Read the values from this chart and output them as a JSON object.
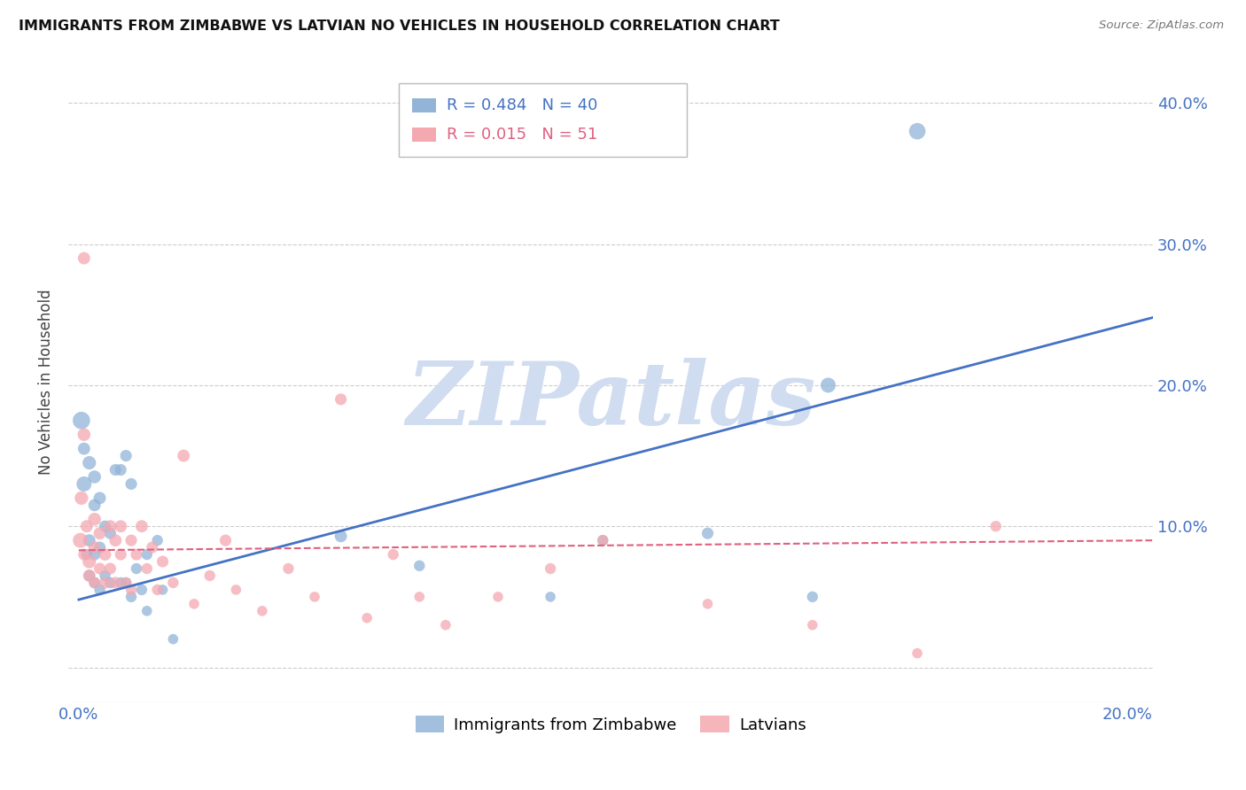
{
  "title": "IMMIGRANTS FROM ZIMBABWE VS LATVIAN NO VEHICLES IN HOUSEHOLD CORRELATION CHART",
  "source": "Source: ZipAtlas.com",
  "ylabel": "No Vehicles in Household",
  "y_ticks": [
    0.0,
    0.1,
    0.2,
    0.3,
    0.4
  ],
  "y_tick_labels": [
    "",
    "10.0%",
    "20.0%",
    "30.0%",
    "40.0%"
  ],
  "x_lim": [
    -0.002,
    0.205
  ],
  "y_lim": [
    -0.025,
    0.43
  ],
  "legend": {
    "blue_R": "0.484",
    "blue_N": "40",
    "pink_R": "0.015",
    "pink_N": "51"
  },
  "blue_color": "#92B4D7",
  "pink_color": "#F4A8B0",
  "blue_line_color": "#4472C4",
  "pink_line_color": "#E06080",
  "watermark_text": "ZIPatlas",
  "watermark_color": "#D0DCF0",
  "blue_scatter": {
    "x": [
      0.0005,
      0.001,
      0.001,
      0.0015,
      0.002,
      0.002,
      0.002,
      0.003,
      0.003,
      0.003,
      0.003,
      0.004,
      0.004,
      0.004,
      0.005,
      0.005,
      0.006,
      0.006,
      0.007,
      0.008,
      0.008,
      0.009,
      0.009,
      0.01,
      0.01,
      0.011,
      0.012,
      0.013,
      0.013,
      0.015,
      0.016,
      0.018,
      0.05,
      0.065,
      0.09,
      0.1,
      0.12,
      0.14,
      0.143,
      0.16
    ],
    "y": [
      0.175,
      0.155,
      0.13,
      0.08,
      0.145,
      0.09,
      0.065,
      0.135,
      0.115,
      0.08,
      0.06,
      0.12,
      0.085,
      0.055,
      0.1,
      0.065,
      0.095,
      0.06,
      0.14,
      0.14,
      0.06,
      0.15,
      0.06,
      0.13,
      0.05,
      0.07,
      0.055,
      0.08,
      0.04,
      0.09,
      0.055,
      0.02,
      0.093,
      0.072,
      0.05,
      0.09,
      0.095,
      0.05,
      0.2,
      0.38
    ],
    "sizes": [
      200,
      100,
      150,
      80,
      120,
      100,
      90,
      110,
      100,
      90,
      80,
      100,
      90,
      80,
      90,
      80,
      90,
      80,
      90,
      90,
      80,
      90,
      80,
      90,
      80,
      80,
      80,
      80,
      70,
      80,
      70,
      70,
      100,
      80,
      70,
      80,
      90,
      80,
      150,
      180
    ]
  },
  "pink_scatter": {
    "x": [
      0.0003,
      0.0005,
      0.001,
      0.001,
      0.001,
      0.0015,
      0.002,
      0.002,
      0.003,
      0.003,
      0.003,
      0.004,
      0.004,
      0.005,
      0.005,
      0.006,
      0.006,
      0.007,
      0.007,
      0.008,
      0.008,
      0.009,
      0.01,
      0.01,
      0.011,
      0.012,
      0.013,
      0.014,
      0.015,
      0.016,
      0.018,
      0.02,
      0.022,
      0.025,
      0.028,
      0.03,
      0.035,
      0.04,
      0.045,
      0.05,
      0.055,
      0.06,
      0.065,
      0.07,
      0.08,
      0.09,
      0.1,
      0.12,
      0.14,
      0.16,
      0.175
    ],
    "y": [
      0.09,
      0.12,
      0.29,
      0.165,
      0.08,
      0.1,
      0.075,
      0.065,
      0.105,
      0.085,
      0.06,
      0.095,
      0.07,
      0.08,
      0.06,
      0.1,
      0.07,
      0.09,
      0.06,
      0.1,
      0.08,
      0.06,
      0.09,
      0.055,
      0.08,
      0.1,
      0.07,
      0.085,
      0.055,
      0.075,
      0.06,
      0.15,
      0.045,
      0.065,
      0.09,
      0.055,
      0.04,
      0.07,
      0.05,
      0.19,
      0.035,
      0.08,
      0.05,
      0.03,
      0.05,
      0.07,
      0.09,
      0.045,
      0.03,
      0.01,
      0.1
    ],
    "sizes": [
      150,
      120,
      100,
      110,
      90,
      100,
      120,
      100,
      110,
      100,
      90,
      100,
      90,
      100,
      90,
      100,
      90,
      100,
      90,
      100,
      90,
      80,
      90,
      80,
      90,
      100,
      80,
      90,
      80,
      90,
      80,
      100,
      70,
      80,
      90,
      70,
      70,
      80,
      70,
      90,
      70,
      80,
      70,
      70,
      70,
      80,
      80,
      70,
      70,
      70,
      80
    ]
  },
  "blue_line": {
    "x": [
      0.0,
      0.205
    ],
    "y": [
      0.048,
      0.248
    ]
  },
  "pink_line": {
    "x": [
      0.0,
      0.205
    ],
    "y": [
      0.083,
      0.09
    ]
  },
  "x_tick_positions": [
    0.0,
    0.05,
    0.1,
    0.15,
    0.2
  ],
  "x_tick_labels": [
    "0.0%",
    "",
    "",
    "",
    "20.0%"
  ]
}
